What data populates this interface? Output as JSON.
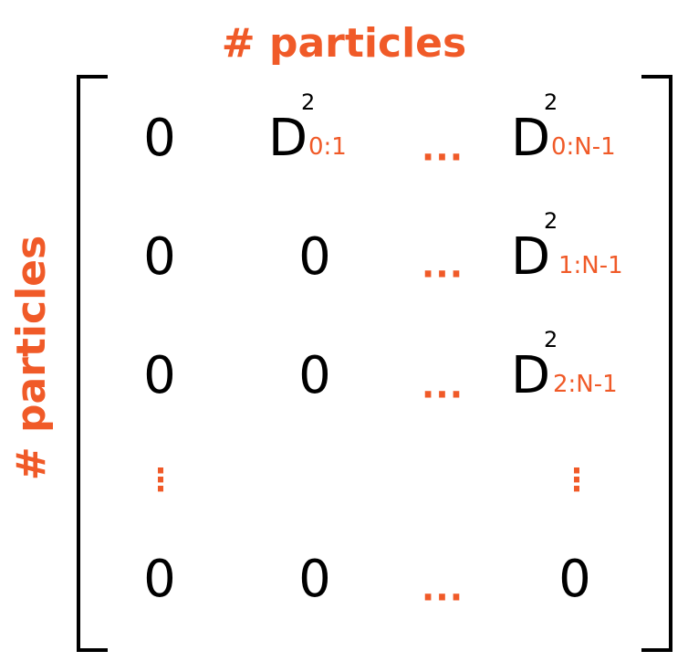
{
  "column_label": "# particles",
  "row_label": "# particles",
  "matrix": {
    "zero": "0",
    "d": "D",
    "power": "2",
    "hdots": "···",
    "vdots": "⋮",
    "subscripts": {
      "r0c1": "0:1",
      "r0c3": "0:N-1",
      "r1c3": "1:N-1",
      "r2c3": "2:N-1"
    }
  },
  "colors": {
    "accent": "#f05a28",
    "ink": "#000000"
  }
}
